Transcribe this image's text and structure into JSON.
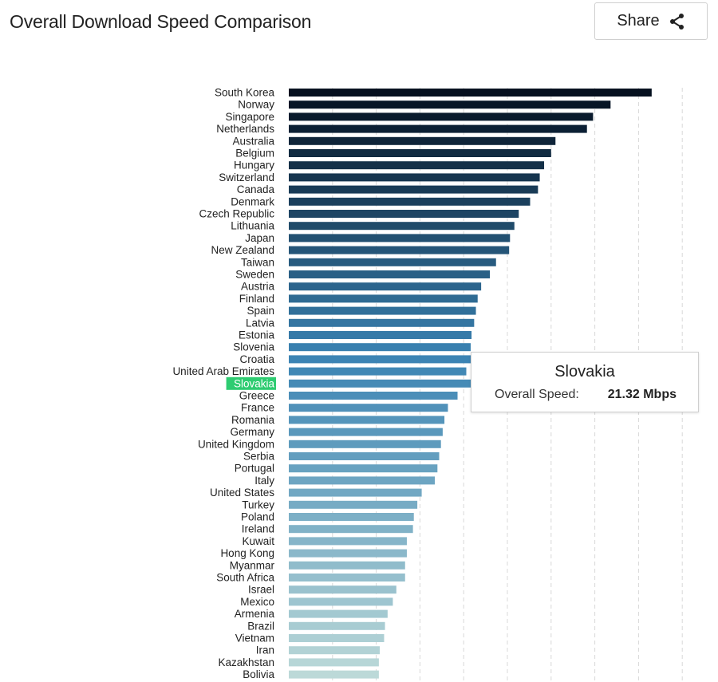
{
  "header": {
    "title": "Overall Download Speed Comparison",
    "share_label": "Share"
  },
  "tooltip": {
    "country": "Slovakia",
    "metric_label": "Overall Speed:",
    "value_text": "21.32 Mbps"
  },
  "colors": {
    "bar_start": "#05101f",
    "bar_mid": "#3a83b3",
    "bar_end": "#bcd9d8",
    "highlight": "#2ecc71",
    "grid": "#d8d8d8"
  },
  "chart_data": {
    "type": "bar",
    "orientation": "horizontal",
    "unit": "Mbps",
    "highlighted": "Slovakia",
    "grid": true,
    "categories": [
      "South Korea",
      "Norway",
      "Singapore",
      "Netherlands",
      "Australia",
      "Belgium",
      "Hungary",
      "Switzerland",
      "Canada",
      "Denmark",
      "Czech Republic",
      "Lithuania",
      "Japan",
      "New Zealand",
      "Taiwan",
      "Sweden",
      "Austria",
      "Finland",
      "Spain",
      "Latvia",
      "Estonia",
      "Slovenia",
      "Croatia",
      "United Arab Emirates",
      "Slovakia",
      "Greece",
      "France",
      "Romania",
      "Germany",
      "United Kingdom",
      "Serbia",
      "Portugal",
      "Italy",
      "United States",
      "Turkey",
      "Poland",
      "Ireland",
      "Kuwait",
      "Hong Kong",
      "Myanmar",
      "South Africa",
      "Israel",
      "Mexico",
      "Armenia",
      "Brazil",
      "Vietnam",
      "Iran",
      "Kazakhstan",
      "Bolivia"
    ],
    "values": [
      41.5,
      36.8,
      34.8,
      34.1,
      30.5,
      30.0,
      29.2,
      28.7,
      28.5,
      27.6,
      26.3,
      25.8,
      25.3,
      25.2,
      23.7,
      23.0,
      22.0,
      21.6,
      21.4,
      21.2,
      20.9,
      20.8,
      20.8,
      20.3,
      21.32,
      19.3,
      18.2,
      17.8,
      17.6,
      17.4,
      17.2,
      17.0,
      16.7,
      15.2,
      14.7,
      14.3,
      14.2,
      13.5,
      13.5,
      13.3,
      13.3,
      12.3,
      11.9,
      11.3,
      11.0,
      10.9,
      10.4,
      10.3,
      10.3
    ],
    "xlim": [
      0,
      46
    ]
  }
}
